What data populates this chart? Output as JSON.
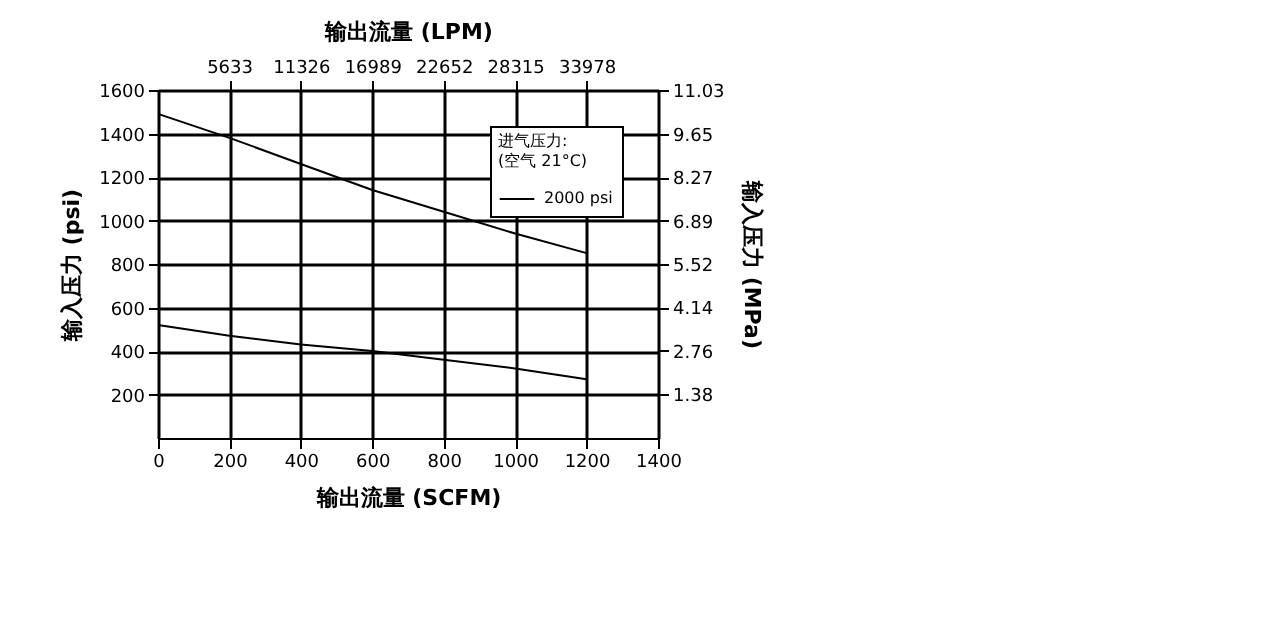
{
  "chart_data": {
    "type": "line",
    "xlabel": "输出流量 (SCFM)",
    "ylabel": "输入压力 (psi)",
    "x2label": "输出流量 (LPM)",
    "y2label": "输入压力 (MPa)",
    "x": [
      0,
      200,
      400,
      600,
      800,
      1000,
      1200
    ],
    "series": [
      {
        "name": "2000 psi",
        "color": "#000000",
        "values": [
          1490,
          1380,
          1260,
          1140,
          1040,
          940,
          850
        ]
      },
      {
        "color": "#000000",
        "values": [
          520,
          470,
          430,
          400,
          360,
          320,
          270
        ]
      }
    ],
    "xlim": [
      0,
      1400
    ],
    "xticks": [
      0,
      200,
      400,
      600,
      800,
      1000,
      1200,
      1400
    ],
    "ylim": [
      0,
      1600
    ],
    "yticks": [
      200,
      400,
      600,
      800,
      1000,
      1200,
      1400,
      1600
    ],
    "x2lim": [
      0,
      39643
    ],
    "x2ticks": [
      5633,
      11326,
      16989,
      22652,
      28315,
      33978
    ],
    "y2lim": [
      0,
      11.03
    ],
    "y2ticks": [
      1.38,
      2.76,
      4.14,
      5.52,
      6.89,
      8.27,
      9.65,
      11.03
    ],
    "legend_title": "进气压力:\n(空气 21°C)",
    "legend": "top right",
    "grid": true
  }
}
